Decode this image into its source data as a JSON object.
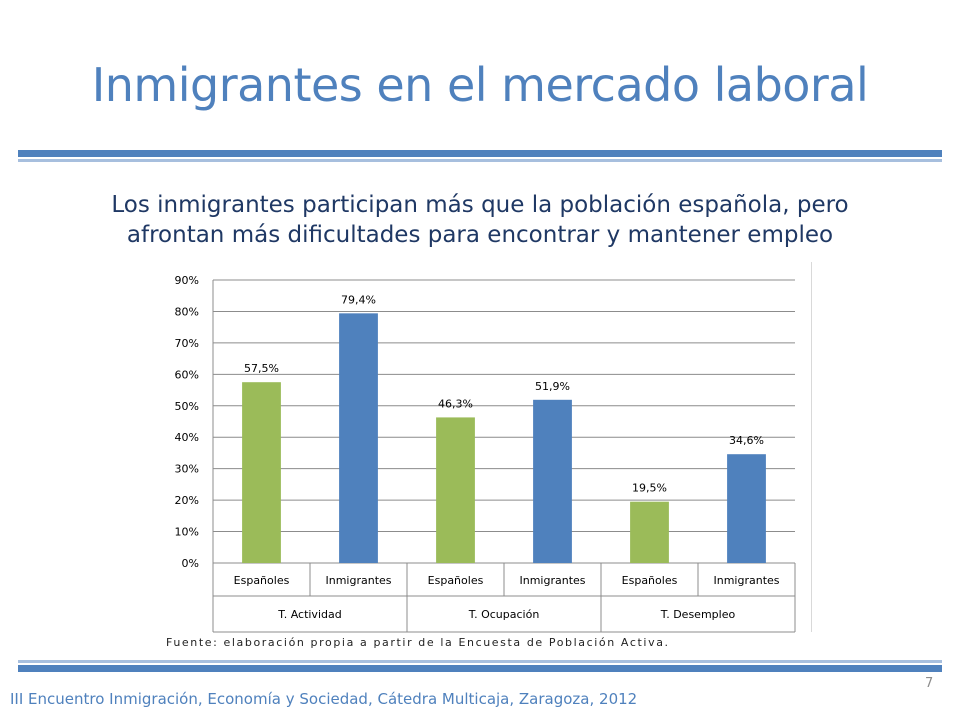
{
  "slide": {
    "title": "Inmigrantes en el mercado laboral",
    "subtitle_line1": "Los inmigrantes participan más que la población española, pero",
    "subtitle_line2": "afrontan más dificultades para encontrar y mantener empleo",
    "source": "Fuente: elaboración propia a partir de la Encuesta de Población Activa.",
    "footer": "III Encuentro Inmigración, Economía y Sociedad, Cátedra Multicaja, Zaragoza, 2012",
    "page_number": "7",
    "accent_color": "#4f81bd"
  },
  "chart_data": {
    "type": "bar",
    "groups": [
      "T. Actividad",
      "T. Ocupación",
      "T. Desempleo"
    ],
    "categories": [
      "Españoles",
      "Inmigrantes",
      "Españoles",
      "Inmigrantes",
      "Españoles",
      "Inmigrantes"
    ],
    "values": [
      57.5,
      79.4,
      46.3,
      51.9,
      19.5,
      34.6
    ],
    "data_labels": [
      "57,5%",
      "79,4%",
      "46,3%",
      "51,9%",
      "19,5%",
      "34,6%"
    ],
    "colors": [
      "#9bbb59",
      "#4f81bd",
      "#9bbb59",
      "#4f81bd",
      "#9bbb59",
      "#4f81bd"
    ],
    "ylim": [
      0,
      90
    ],
    "yticks": [
      "0%",
      "10%",
      "20%",
      "30%",
      "40%",
      "50%",
      "60%",
      "70%",
      "80%",
      "90%"
    ],
    "grid": true
  }
}
